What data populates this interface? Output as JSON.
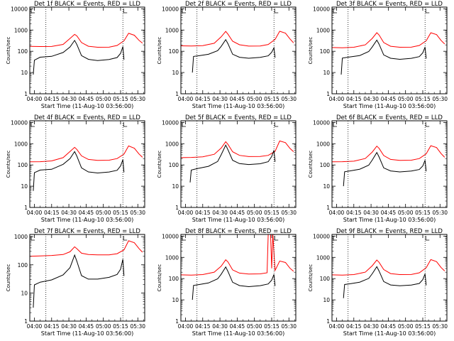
{
  "page": {
    "background": "#ffffff"
  },
  "colors": {
    "events": "#000000",
    "lld": "#ff0000",
    "axis": "#000000",
    "marker": "#000000"
  },
  "shared": {
    "ylabel": "Counts/sec",
    "xlabel": "Start Time (11-Aug-10 03:56:00)",
    "x_tick_labels": [
      "04:00",
      "04:15",
      "04:30",
      "04:45",
      "05:00",
      "05:15",
      "05:30"
    ]
  },
  "chart_data": [
    {
      "type": "line",
      "title": "Det 1f BLACK = Events, RED = LLD",
      "yscale": "log",
      "ylim": [
        1,
        12000
      ],
      "y_tick_labels": [
        "1",
        "10",
        "100",
        "1000",
        "10000"
      ],
      "xlim": [
        "03:56",
        "05:36"
      ],
      "x_ticks": [
        "04:00",
        "04:15",
        "04:30",
        "04:45",
        "05:00",
        "05:15",
        "05:30"
      ],
      "vlines": [
        "04:10",
        "05:17"
      ],
      "series": [
        {
          "color": "#ff0000",
          "x": [
            "03:56",
            "04:05",
            "04:15",
            "04:25",
            "04:31",
            "04:35",
            "04:37",
            "04:41",
            "04:47",
            "04:55",
            "05:05",
            "05:12",
            "05:18",
            "05:22",
            "05:27",
            "05:31",
            "05:34"
          ],
          "y": [
            170,
            170,
            175,
            220,
            420,
            650,
            540,
            260,
            170,
            150,
            150,
            180,
            300,
            680,
            560,
            330,
            240
          ]
        },
        {
          "color": "#000000",
          "x": [
            "03:59",
            "04:00",
            "04:05",
            "04:15",
            "04:25",
            "04:31",
            "04:35",
            "04:37",
            "04:41",
            "04:47",
            "04:55",
            "05:05",
            "05:12",
            "05:15",
            "05:17",
            "05:18"
          ],
          "y": [
            8,
            40,
            55,
            60,
            90,
            160,
            320,
            200,
            60,
            40,
            35,
            40,
            50,
            80,
            170,
            40
          ]
        }
      ]
    },
    {
      "type": "line",
      "title": "Det 2f BLACK = Events, RED = LLD",
      "yscale": "log",
      "ylim": [
        1,
        12000
      ],
      "y_tick_labels": [
        "1",
        "10",
        "100",
        "1000",
        "10000"
      ],
      "xlim": [
        "03:56",
        "05:36"
      ],
      "x_ticks": [
        "04:00",
        "04:15",
        "04:30",
        "04:45",
        "05:00",
        "05:15",
        "05:30"
      ],
      "vlines": [
        "04:10",
        "05:17"
      ],
      "series": [
        {
          "color": "#ff0000",
          "x": [
            "03:56",
            "04:05",
            "04:15",
            "04:25",
            "04:31",
            "04:35",
            "04:37",
            "04:41",
            "04:47",
            "04:55",
            "05:05",
            "05:12",
            "05:18",
            "05:22",
            "05:27",
            "05:31",
            "05:34"
          ],
          "y": [
            180,
            180,
            190,
            250,
            500,
            900,
            650,
            300,
            200,
            170,
            170,
            200,
            350,
            850,
            700,
            380,
            250
          ]
        },
        {
          "color": "#000000",
          "x": [
            "04:06",
            "04:07",
            "04:12",
            "04:20",
            "04:28",
            "04:31",
            "04:35",
            "04:37",
            "04:41",
            "04:47",
            "04:55",
            "05:05",
            "05:12",
            "05:15",
            "05:17",
            "05:18"
          ],
          "y": [
            10,
            60,
            65,
            75,
            110,
            170,
            350,
            220,
            70,
            50,
            45,
            50,
            60,
            90,
            150,
            50
          ]
        }
      ]
    },
    {
      "type": "line",
      "title": "Det 3f BLACK = Events, RED = LLD",
      "yscale": "log",
      "ylim": [
        1,
        12000
      ],
      "y_tick_labels": [
        "1",
        "10",
        "100",
        "1000",
        "10000"
      ],
      "xlim": [
        "03:56",
        "05:36"
      ],
      "x_ticks": [
        "04:00",
        "04:15",
        "04:30",
        "04:45",
        "05:00",
        "05:15",
        "05:30"
      ],
      "vlines": [
        "04:10",
        "05:17"
      ],
      "series": [
        {
          "color": "#ff0000",
          "x": [
            "03:56",
            "04:05",
            "04:15",
            "04:25",
            "04:31",
            "04:35",
            "04:37",
            "04:41",
            "04:47",
            "04:55",
            "05:05",
            "05:12",
            "05:18",
            "05:22",
            "05:27",
            "05:31",
            "05:34"
          ],
          "y": [
            150,
            150,
            160,
            210,
            420,
            780,
            600,
            260,
            170,
            150,
            150,
            180,
            300,
            720,
            600,
            320,
            220
          ]
        },
        {
          "color": "#000000",
          "x": [
            "04:04",
            "04:05",
            "04:10",
            "04:20",
            "04:28",
            "04:31",
            "04:35",
            "04:37",
            "04:41",
            "04:47",
            "04:55",
            "05:05",
            "05:12",
            "05:15",
            "05:17",
            "05:18"
          ],
          "y": [
            8,
            50,
            55,
            65,
            100,
            160,
            330,
            210,
            65,
            45,
            40,
            45,
            55,
            85,
            160,
            45
          ]
        }
      ]
    },
    {
      "type": "line",
      "title": "Det 4f BLACK = Events, RED = LLD",
      "yscale": "log",
      "ylim": [
        1,
        12000
      ],
      "y_tick_labels": [
        "1",
        "10",
        "100",
        "1000",
        "10000"
      ],
      "xlim": [
        "03:56",
        "05:36"
      ],
      "x_ticks": [
        "04:00",
        "04:15",
        "04:30",
        "04:45",
        "05:00",
        "05:15",
        "05:30"
      ],
      "vlines": [
        "04:10",
        "05:17"
      ],
      "series": [
        {
          "color": "#ff0000",
          "x": [
            "03:56",
            "04:05",
            "04:15",
            "04:25",
            "04:31",
            "04:35",
            "04:37",
            "04:41",
            "04:47",
            "04:55",
            "05:05",
            "05:12",
            "05:18",
            "05:22",
            "05:27",
            "05:31",
            "05:34"
          ],
          "y": [
            140,
            145,
            160,
            230,
            450,
            700,
            550,
            270,
            180,
            160,
            160,
            190,
            310,
            760,
            600,
            330,
            230
          ]
        },
        {
          "color": "#000000",
          "x": [
            "03:59",
            "04:00",
            "04:05",
            "04:15",
            "04:25",
            "04:31",
            "04:35",
            "04:37",
            "04:41",
            "04:47",
            "04:55",
            "05:05",
            "05:12",
            "05:15",
            "05:17",
            "05:18"
          ],
          "y": [
            6,
            45,
            60,
            65,
            110,
            200,
            420,
            250,
            70,
            45,
            40,
            45,
            55,
            90,
            180,
            45
          ]
        }
      ]
    },
    {
      "type": "line",
      "title": "Det 5f BLACK = Events, RED = LLD",
      "yscale": "log",
      "ylim": [
        1,
        12000
      ],
      "y_tick_labels": [
        "1",
        "10",
        "100",
        "1000",
        "10000"
      ],
      "xlim": [
        "03:56",
        "05:36"
      ],
      "x_ticks": [
        "04:00",
        "04:15",
        "04:30",
        "04:45",
        "05:00",
        "05:15",
        "05:30"
      ],
      "vlines": [
        "04:10",
        "05:17"
      ],
      "series": [
        {
          "color": "#ff0000",
          "x": [
            "03:56",
            "04:05",
            "04:15",
            "04:25",
            "04:31",
            "04:35",
            "04:37",
            "04:41",
            "04:47",
            "04:55",
            "05:05",
            "05:12",
            "05:18",
            "05:22",
            "05:27",
            "05:31",
            "05:34"
          ],
          "y": [
            220,
            230,
            250,
            330,
            650,
            1300,
            950,
            420,
            280,
            240,
            240,
            270,
            420,
            1300,
            1100,
            600,
            420
          ]
        },
        {
          "color": "#000000",
          "x": [
            "04:04",
            "04:05",
            "04:10",
            "04:20",
            "04:28",
            "04:31",
            "04:35",
            "04:37",
            "04:41",
            "04:47",
            "04:55",
            "05:05",
            "05:12",
            "05:15",
            "05:17",
            "05:18"
          ],
          "y": [
            15,
            60,
            70,
            90,
            150,
            300,
            850,
            500,
            160,
            110,
            100,
            110,
            140,
            250,
            500,
            140
          ]
        }
      ]
    },
    {
      "type": "line",
      "title": "Det 6f BLACK = Events, RED = LLD",
      "yscale": "log",
      "ylim": [
        1,
        12000
      ],
      "y_tick_labels": [
        "1",
        "10",
        "100",
        "1000",
        "10000"
      ],
      "xlim": [
        "03:56",
        "05:36"
      ],
      "x_ticks": [
        "04:00",
        "04:15",
        "04:30",
        "04:45",
        "05:00",
        "05:15",
        "05:30"
      ],
      "vlines": [
        "04:10",
        "05:17"
      ],
      "series": [
        {
          "color": "#ff0000",
          "x": [
            "03:56",
            "04:05",
            "04:15",
            "04:25",
            "04:31",
            "04:35",
            "04:37",
            "04:41",
            "04:47",
            "04:55",
            "05:05",
            "05:12",
            "05:18",
            "05:22",
            "05:27",
            "05:31",
            "05:34"
          ],
          "y": [
            140,
            145,
            155,
            210,
            420,
            800,
            620,
            280,
            180,
            160,
            160,
            190,
            320,
            780,
            650,
            340,
            230
          ]
        },
        {
          "color": "#000000",
          "x": [
            "04:06",
            "04:07",
            "04:12",
            "04:20",
            "04:28",
            "04:31",
            "04:35",
            "04:37",
            "04:41",
            "04:47",
            "04:55",
            "05:05",
            "05:12",
            "05:15",
            "05:17",
            "05:18"
          ],
          "y": [
            10,
            50,
            55,
            65,
            100,
            170,
            380,
            230,
            70,
            50,
            45,
            50,
            60,
            90,
            170,
            50
          ]
        }
      ]
    },
    {
      "type": "line",
      "title": "Det 7f BLACK = Events, RED = LLD",
      "yscale": "log",
      "ylim": [
        1,
        1200
      ],
      "y_tick_labels": [
        "1",
        "10",
        "100",
        "1000"
      ],
      "xlim": [
        "03:56",
        "05:36"
      ],
      "x_ticks": [
        "04:00",
        "04:15",
        "04:30",
        "04:45",
        "05:00",
        "05:15",
        "05:30"
      ],
      "vlines": [
        "04:10",
        "05:17"
      ],
      "series": [
        {
          "color": "#ff0000",
          "x": [
            "03:56",
            "04:05",
            "04:15",
            "04:25",
            "04:31",
            "04:35",
            "04:37",
            "04:41",
            "04:47",
            "04:55",
            "05:05",
            "05:12",
            "05:18",
            "05:22",
            "05:27",
            "05:31",
            "05:34"
          ],
          "y": [
            200,
            210,
            220,
            240,
            300,
            450,
            380,
            260,
            230,
            220,
            220,
            240,
            330,
            700,
            600,
            380,
            280
          ]
        },
        {
          "color": "#000000",
          "x": [
            "03:59",
            "04:00",
            "04:05",
            "04:15",
            "04:25",
            "04:31",
            "04:35",
            "04:37",
            "04:41",
            "04:47",
            "04:55",
            "05:05",
            "05:12",
            "05:15",
            "05:17",
            "05:18"
          ],
          "y": [
            3,
            20,
            25,
            30,
            45,
            80,
            220,
            130,
            40,
            30,
            30,
            35,
            45,
            70,
            160,
            40
          ]
        }
      ]
    },
    {
      "type": "line",
      "title": "Det 8f BLACK = Events, RED = LLD",
      "yscale": "log",
      "ylim": [
        1,
        12000
      ],
      "y_tick_labels": [
        "1",
        "10",
        "100",
        "1000",
        "10000"
      ],
      "xlim": [
        "03:56",
        "05:36"
      ],
      "x_ticks": [
        "04:00",
        "04:15",
        "04:30",
        "04:45",
        "05:00",
        "05:15",
        "05:30"
      ],
      "vlines": [
        "04:10",
        "05:17"
      ],
      "series": [
        {
          "color": "#ff0000",
          "x": [
            "03:56",
            "04:05",
            "04:15",
            "04:25",
            "04:31",
            "04:35",
            "04:37",
            "04:41",
            "04:47",
            "04:55",
            "05:05",
            "05:11",
            "05:12",
            "05:14",
            "05:15",
            "05:16",
            "05:18",
            "05:22",
            "05:27",
            "05:31",
            "05:34"
          ],
          "y": [
            150,
            150,
            160,
            210,
            400,
            800,
            620,
            260,
            180,
            160,
            160,
            180,
            12000,
            12000,
            300,
            12000,
            250,
            700,
            600,
            320,
            220
          ]
        },
        {
          "color": "#000000",
          "x": [
            "04:06",
            "04:07",
            "04:12",
            "04:20",
            "04:28",
            "04:31",
            "04:35",
            "04:37",
            "04:41",
            "04:47",
            "04:55",
            "05:05",
            "05:12",
            "05:15",
            "05:17",
            "05:18"
          ],
          "y": [
            10,
            50,
            55,
            65,
            100,
            160,
            350,
            210,
            65,
            45,
            40,
            45,
            55,
            85,
            160,
            45
          ]
        }
      ]
    },
    {
      "type": "line",
      "title": "Det 9f BLACK = Events, RED = LLD",
      "yscale": "log",
      "ylim": [
        1,
        12000
      ],
      "y_tick_labels": [
        "1",
        "10",
        "100",
        "1000",
        "10000"
      ],
      "xlim": [
        "03:56",
        "05:36"
      ],
      "x_ticks": [
        "04:00",
        "04:15",
        "04:30",
        "04:45",
        "05:00",
        "05:15",
        "05:30"
      ],
      "vlines": [
        "04:10",
        "05:17"
      ],
      "series": [
        {
          "color": "#ff0000",
          "x": [
            "03:56",
            "04:05",
            "04:15",
            "04:25",
            "04:31",
            "04:35",
            "04:37",
            "04:41",
            "04:47",
            "04:55",
            "05:05",
            "05:12",
            "05:18",
            "05:22",
            "05:27",
            "05:31",
            "05:34"
          ],
          "y": [
            150,
            150,
            160,
            210,
            420,
            780,
            600,
            270,
            170,
            150,
            150,
            180,
            310,
            760,
            620,
            330,
            230
          ]
        },
        {
          "color": "#000000",
          "x": [
            "04:06",
            "04:07",
            "04:12",
            "04:20",
            "04:28",
            "04:31",
            "04:35",
            "04:37",
            "04:41",
            "04:47",
            "04:55",
            "05:05",
            "05:12",
            "05:15",
            "05:17",
            "05:18"
          ],
          "y": [
            12,
            55,
            60,
            70,
            105,
            170,
            360,
            220,
            70,
            48,
            44,
            48,
            58,
            90,
            170,
            48
          ]
        }
      ]
    }
  ]
}
